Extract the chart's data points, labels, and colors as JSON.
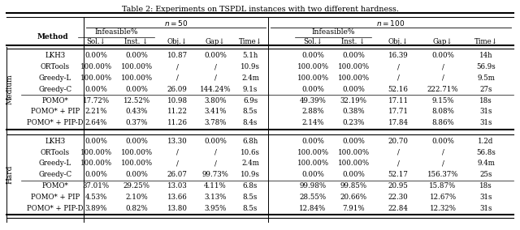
{
  "title": "Table 2: Experiments on TSPDL instances with two different hardness.",
  "rows": [
    {
      "group": "Medium",
      "method": "LKH3",
      "n50": [
        "0.00%",
        "0.00%",
        "10.87",
        "0.00%",
        "5.1h"
      ],
      "n100": [
        "0.00%",
        "0.00%",
        "16.39",
        "0.00%",
        "14h"
      ]
    },
    {
      "group": "Medium",
      "method": "ORTools",
      "n50": [
        "100.00%",
        "100.00%",
        "/",
        "/",
        "10.9s"
      ],
      "n100": [
        "100.00%",
        "100.00%",
        "/",
        "/",
        "56.9s"
      ]
    },
    {
      "group": "Medium",
      "method": "Greedy-L",
      "n50": [
        "100.00%",
        "100.00%",
        "/",
        "/",
        "2.4m"
      ],
      "n100": [
        "100.00%",
        "100.00%",
        "/",
        "/",
        "9.5m"
      ]
    },
    {
      "group": "Medium",
      "method": "Greedy-C",
      "n50": [
        "0.00%",
        "0.00%",
        "26.09",
        "144.24%",
        "9.1s"
      ],
      "n100": [
        "0.00%",
        "0.00%",
        "52.16",
        "222.71%",
        "27s"
      ]
    },
    {
      "group": "Medium",
      "method": "POMO*",
      "n50": [
        "17.72%",
        "12.52%",
        "10.98",
        "3.80%",
        "6.9s"
      ],
      "n100": [
        "49.39%",
        "32.19%",
        "17.11",
        "9.15%",
        "18s"
      ]
    },
    {
      "group": "Medium",
      "method": "POMO* + PIP",
      "n50": [
        "2.21%",
        "0.43%",
        "11.22",
        "3.41%",
        "8.5s"
      ],
      "n100": [
        "2.88%",
        "0.38%",
        "17.71",
        "8.08%",
        "31s"
      ]
    },
    {
      "group": "Medium",
      "method": "POMO* + PIP-D",
      "n50": [
        "2.64%",
        "0.37%",
        "11.26",
        "3.78%",
        "8.4s"
      ],
      "n100": [
        "2.14%",
        "0.23%",
        "17.84",
        "8.86%",
        "31s"
      ]
    },
    {
      "group": "Hard",
      "method": "LKH3",
      "n50": [
        "0.00%",
        "0.00%",
        "13.30",
        "0.00%",
        "6.8h"
      ],
      "n100": [
        "0.00%",
        "0.00%",
        "20.70",
        "0.00%",
        "1.2d"
      ]
    },
    {
      "group": "Hard",
      "method": "ORTools",
      "n50": [
        "100.00%",
        "100.00%",
        "/",
        "/",
        "10.6s"
      ],
      "n100": [
        "100.00%",
        "100.00%",
        "/",
        "/",
        "56.8s"
      ]
    },
    {
      "group": "Hard",
      "method": "Greedy-L",
      "n50": [
        "100.00%",
        "100.00%",
        "/",
        "/",
        "2.4m"
      ],
      "n100": [
        "100.00%",
        "100.00%",
        "/",
        "/",
        "9.4m"
      ]
    },
    {
      "group": "Hard",
      "method": "Greedy-C",
      "n50": [
        "0.00%",
        "0.00%",
        "26.07",
        "99.73%",
        "10.9s"
      ],
      "n100": [
        "0.00%",
        "0.00%",
        "52.17",
        "156.37%",
        "25s"
      ]
    },
    {
      "group": "Hard",
      "method": "POMO*",
      "n50": [
        "37.01%",
        "29.25%",
        "13.03",
        "4.11%",
        "6.8s"
      ],
      "n100": [
        "99.98%",
        "99.85%",
        "20.95",
        "15.87%",
        "18s"
      ]
    },
    {
      "group": "Hard",
      "method": "POMO* + PIP",
      "n50": [
        "4.53%",
        "2.10%",
        "13.66",
        "3.13%",
        "8.5s"
      ],
      "n100": [
        "28.55%",
        "20.66%",
        "22.30",
        "12.67%",
        "31s"
      ]
    },
    {
      "group": "Hard",
      "method": "POMO* + PIP-D",
      "n50": [
        "3.89%",
        "0.82%",
        "13.80",
        "3.95%",
        "8.5s"
      ],
      "n100": [
        "12.84%",
        "7.91%",
        "22.84",
        "12.32%",
        "31s"
      ]
    }
  ],
  "bg_color": "#ffffff",
  "text_color": "#000000",
  "title_fs": 6.8,
  "header_fs": 6.5,
  "data_fs": 6.2,
  "group_label_fs": 6.5
}
